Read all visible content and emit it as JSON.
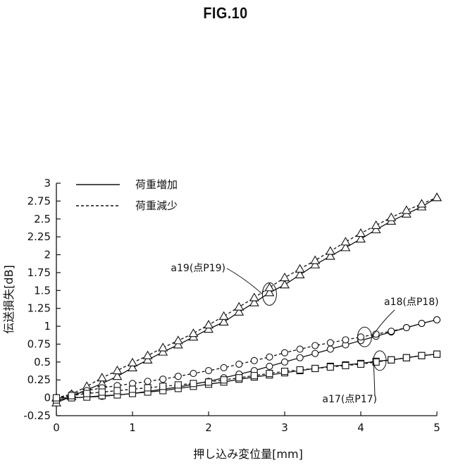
{
  "figure": {
    "title": "FIG.10"
  },
  "chart_data": {
    "type": "line",
    "xlabel": "押し込み変位量[mm]",
    "ylabel": "伝送損失[dB]",
    "xlim": [
      0,
      5
    ],
    "ylim": [
      -0.25,
      3
    ],
    "xticks": [
      0,
      1,
      2,
      3,
      4,
      5
    ],
    "yticks": [
      -0.25,
      0,
      0.25,
      0.5,
      0.75,
      1,
      1.25,
      1.5,
      1.75,
      2,
      2.25,
      2.5,
      2.75,
      3
    ],
    "grid": false,
    "legend": {
      "placement": "top-left",
      "entries": [
        {
          "label": "荷重増加",
          "style": "solid"
        },
        {
          "label": "荷重減少",
          "style": "dashed"
        }
      ]
    },
    "series": [
      {
        "group": "a19",
        "marker": "triangle",
        "style": "solid",
        "x": [
          0,
          0.2,
          0.4,
          0.6,
          0.8,
          1.0,
          1.2,
          1.4,
          1.6,
          1.8,
          2.0,
          2.2,
          2.4,
          2.6,
          2.8,
          3.0,
          3.2,
          3.4,
          3.6,
          3.8,
          4.0,
          4.2,
          4.4,
          4.6,
          4.8,
          5.0
        ],
        "y": [
          -0.07,
          0.02,
          0.11,
          0.2,
          0.3,
          0.42,
          0.53,
          0.64,
          0.74,
          0.85,
          0.96,
          1.06,
          1.2,
          1.33,
          1.47,
          1.58,
          1.72,
          1.86,
          1.98,
          2.1,
          2.22,
          2.35,
          2.47,
          2.57,
          2.67,
          2.8
        ]
      },
      {
        "group": "a19",
        "marker": "triangle",
        "style": "dashed",
        "x": [
          0,
          0.2,
          0.4,
          0.6,
          0.8,
          1.0,
          1.2,
          1.4,
          1.6,
          1.8,
          2.0,
          2.2,
          2.4,
          2.6,
          2.8,
          3.0,
          3.2,
          3.4,
          3.6,
          3.8,
          4.0,
          4.2,
          4.4,
          4.6,
          4.8,
          5.0
        ],
        "y": [
          0,
          0.05,
          0.16,
          0.28,
          0.38,
          0.49,
          0.59,
          0.7,
          0.8,
          0.9,
          1.02,
          1.14,
          1.27,
          1.4,
          1.54,
          1.68,
          1.8,
          1.92,
          2.05,
          2.18,
          2.3,
          2.41,
          2.52,
          2.62,
          2.71,
          2.8
        ]
      },
      {
        "group": "a18",
        "marker": "circle",
        "style": "solid",
        "x": [
          0,
          0.2,
          0.4,
          0.6,
          0.8,
          1.0,
          1.2,
          1.4,
          1.6,
          1.8,
          2.0,
          2.2,
          2.4,
          2.6,
          2.8,
          3.0,
          3.2,
          3.4,
          3.6,
          3.8,
          4.0,
          4.2,
          4.4,
          4.6,
          4.8,
          5.0
        ],
        "y": [
          0,
          0.0,
          0.01,
          0.02,
          0.04,
          0.06,
          0.09,
          0.12,
          0.15,
          0.19,
          0.23,
          0.28,
          0.33,
          0.38,
          0.44,
          0.5,
          0.56,
          0.62,
          0.68,
          0.74,
          0.8,
          0.86,
          0.92,
          0.98,
          1.04,
          1.09
        ]
      },
      {
        "group": "a18",
        "marker": "circle",
        "style": "dashed",
        "x": [
          0,
          0.2,
          0.4,
          0.6,
          0.8,
          1.0,
          1.2,
          1.4,
          1.6,
          1.8,
          2.0,
          2.2,
          2.4,
          2.6,
          2.8,
          3.0,
          3.2,
          3.4,
          3.6,
          3.8,
          4.0,
          4.2,
          4.4,
          4.6,
          4.8,
          5.0
        ],
        "y": [
          0,
          0.05,
          0.1,
          0.14,
          0.17,
          0.2,
          0.23,
          0.26,
          0.3,
          0.34,
          0.38,
          0.42,
          0.47,
          0.52,
          0.57,
          0.63,
          0.68,
          0.73,
          0.77,
          0.81,
          0.85,
          0.89,
          0.93,
          0.98,
          1.04,
          1.09
        ]
      },
      {
        "group": "a17",
        "marker": "square",
        "style": "solid",
        "x": [
          0,
          0.2,
          0.4,
          0.6,
          0.8,
          1.0,
          1.2,
          1.4,
          1.6,
          1.8,
          2.0,
          2.2,
          2.4,
          2.6,
          2.8,
          3.0,
          3.2,
          3.4,
          3.6,
          3.8,
          4.0,
          4.2,
          4.4,
          4.6,
          4.8,
          5.0
        ],
        "y": [
          -0.03,
          0.0,
          0.01,
          0.03,
          0.04,
          0.06,
          0.08,
          0.1,
          0.13,
          0.16,
          0.19,
          0.22,
          0.26,
          0.29,
          0.32,
          0.35,
          0.38,
          0.41,
          0.44,
          0.46,
          0.48,
          0.51,
          0.53,
          0.56,
          0.59,
          0.61
        ]
      },
      {
        "group": "a17",
        "marker": "square",
        "style": "dashed",
        "x": [
          0,
          0.2,
          0.4,
          0.6,
          0.8,
          1.0,
          1.2,
          1.4,
          1.6,
          1.8,
          2.0,
          2.2,
          2.4,
          2.6,
          2.8,
          3.0,
          3.2,
          3.4,
          3.6,
          3.8,
          4.0,
          4.2,
          4.4,
          4.6,
          4.8,
          5.0
        ],
        "y": [
          0,
          0.03,
          0.06,
          0.08,
          0.1,
          0.12,
          0.14,
          0.16,
          0.18,
          0.2,
          0.22,
          0.25,
          0.28,
          0.31,
          0.34,
          0.37,
          0.39,
          0.41,
          0.43,
          0.45,
          0.47,
          0.5,
          0.53,
          0.56,
          0.59,
          0.61
        ]
      }
    ],
    "annotations": [
      {
        "group": "a19",
        "text": "a19(点P19)",
        "x": 2.8,
        "y": 1.45
      },
      {
        "group": "a18",
        "text": "a18(点P18)",
        "x": 4.05,
        "y": 0.85
      },
      {
        "group": "a17",
        "text": "a17(点P17)",
        "x": 4.25,
        "y": 0.52
      }
    ]
  }
}
